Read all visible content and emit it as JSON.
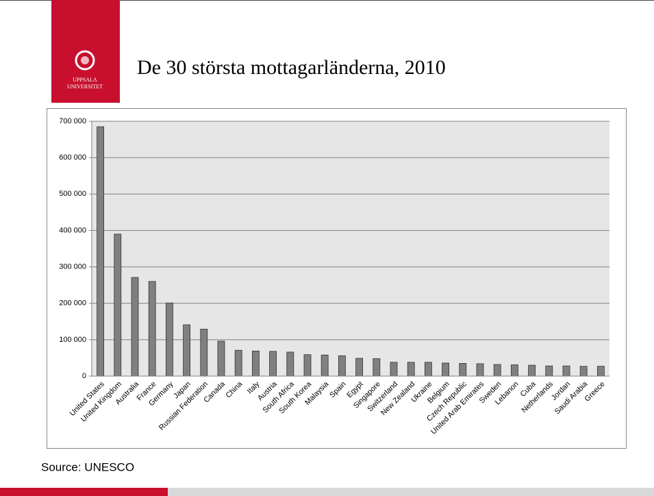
{
  "logo": [
    "UPPSALA",
    "UNIVERSITET"
  ],
  "source": "Source: UNESCO",
  "chart_data": {
    "type": "bar",
    "title": "De 30 största mottagarländerna, 2010",
    "categories": [
      "United States",
      "United Kingdom",
      "Australia",
      "France",
      "Germany",
      "Japan",
      "Russian Federation",
      "Canada",
      "China",
      "Italy",
      "Austria",
      "South Africa",
      "South Korea",
      "Malaysia",
      "Spain",
      "Egypt",
      "Singapore",
      "Switzerland",
      "New Zealand",
      "Ukraine",
      "Belgium",
      "Czech Republic",
      "United Arab Emirates",
      "Sweden",
      "Lebanon",
      "Cuba",
      "Netherlands",
      "Jordan",
      "Saudi Arabia",
      "Greece"
    ],
    "values": [
      685000,
      390000,
      271000,
      260000,
      201000,
      141000,
      129000,
      96000,
      71000,
      69000,
      68000,
      66000,
      59000,
      58000,
      56000,
      49000,
      48000,
      38000,
      38000,
      38000,
      36000,
      35000,
      34000,
      32000,
      31000,
      30000,
      28000,
      28000,
      27000,
      27000
    ],
    "color": "#808080",
    "ylim": [
      0,
      700000
    ],
    "yticks": [
      0,
      {
        "value": 100000,
        "label": "100 000"
      },
      {
        "value": 200000,
        "label": "200 000"
      },
      {
        "value": 300000,
        "label": "300 000"
      },
      {
        "value": 400000,
        "label": "400 000"
      },
      {
        "value": 500000,
        "label": "500 000"
      },
      {
        "value": 600000,
        "label": "600 000"
      },
      {
        "value": 700000,
        "label": "700 000"
      }
    ],
    "grid": true
  }
}
